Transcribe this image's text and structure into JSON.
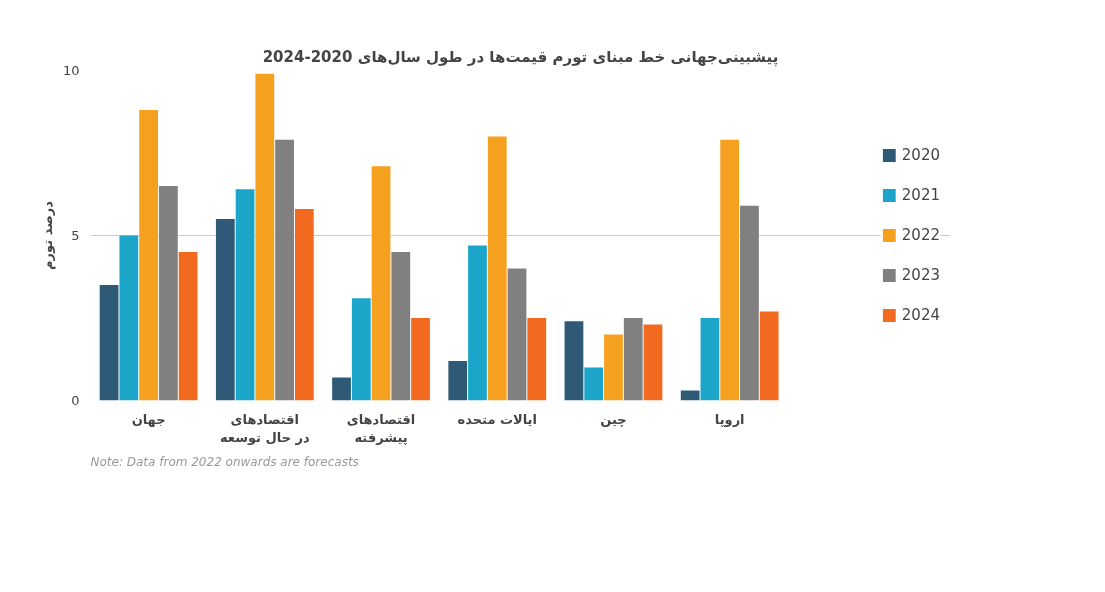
{
  "chart_data": {
    "type": "bar",
    "title": "پیشبینی‌جهانی خط مبنای تورم قیمت‌ها در طول سال‌های 2020-2024",
    "ylabel": "درصد تورم",
    "categories": [
      "جهان",
      "اقتصادهای در حال توسعه",
      "اقتصادهای پیشرفته",
      "ایالات متحده",
      "چین",
      "اروپا"
    ],
    "series": [
      {
        "name": "2020",
        "color": "#2e5a77",
        "values": [
          3.5,
          5.5,
          0.7,
          1.2,
          2.4,
          0.3
        ]
      },
      {
        "name": "2021",
        "color": "#1ba6c9",
        "values": [
          5.0,
          6.4,
          3.1,
          4.7,
          1.0,
          2.5
        ]
      },
      {
        "name": "2022",
        "color": "#f5a11f",
        "values": [
          8.8,
          9.9,
          7.1,
          8.0,
          2.0,
          7.9
        ]
      },
      {
        "name": "2023",
        "color": "#808080",
        "values": [
          6.5,
          7.9,
          4.5,
          4.0,
          2.5,
          5.9
        ]
      },
      {
        "name": "2024",
        "color": "#f26a1f",
        "values": [
          4.5,
          5.8,
          2.5,
          2.5,
          2.3,
          2.7
        ]
      }
    ],
    "ylim": [
      0,
      10
    ],
    "yticks": [
      0,
      5,
      10
    ],
    "grid": "y",
    "legend": "right",
    "annotations": [
      "Note: Data from 2022 onwards are forecasts"
    ]
  }
}
